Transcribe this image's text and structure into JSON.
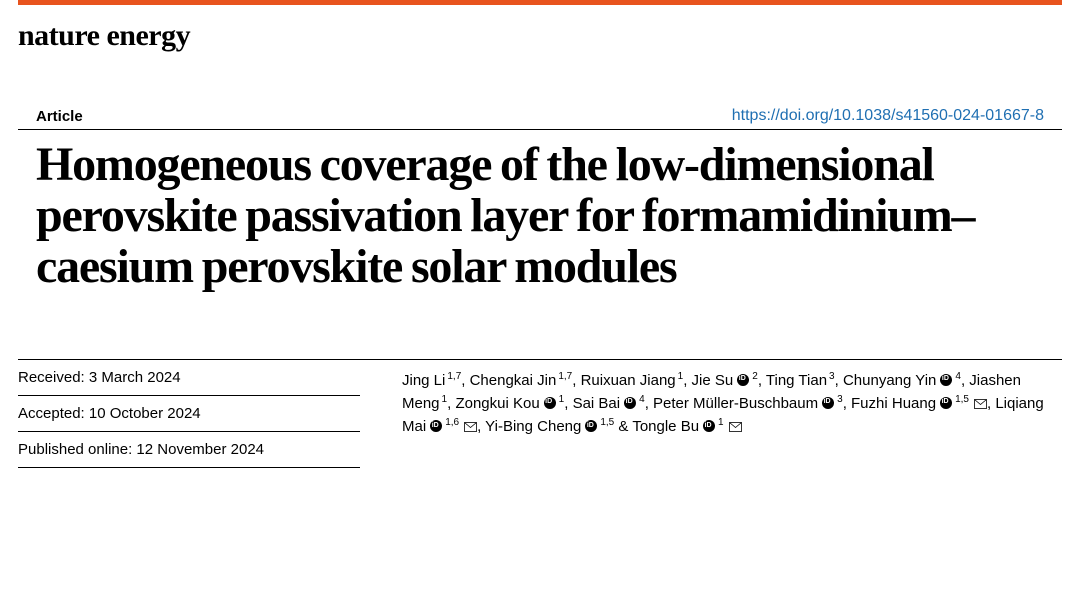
{
  "journal": "nature energy",
  "article_type": "Article",
  "doi": "https://doi.org/10.1038/s41560-024-01667-8",
  "title": "Homogeneous coverage of the low-dimensional perovskite passivation layer for formamidinium–caesium perovskite solar modules",
  "dates": {
    "received_label": "Received: 3 March 2024",
    "accepted_label": "Accepted: 10 October 2024",
    "published_label": "Published online: 12 November 2024"
  },
  "authors": [
    {
      "name": "Jing Li",
      "aff": "1,7"
    },
    {
      "name": "Chengkai Jin",
      "aff": "1,7"
    },
    {
      "name": "Ruixuan Jiang",
      "aff": "1"
    },
    {
      "name": "Jie Su",
      "orcid": true,
      "aff": "2"
    },
    {
      "name": "Ting Tian",
      "aff": "3"
    },
    {
      "name": "Chunyang Yin",
      "orcid": true,
      "aff": "4"
    },
    {
      "name": "Jiashen Meng",
      "aff": "1"
    },
    {
      "name": "Zongkui Kou",
      "orcid": true,
      "aff": "1"
    },
    {
      "name": "Sai Bai",
      "orcid": true,
      "aff": "4"
    },
    {
      "name": "Peter Müller-Buschbaum",
      "orcid": true,
      "aff": "3"
    },
    {
      "name": "Fuzhi Huang",
      "orcid": true,
      "aff": "1,5",
      "mail": true
    },
    {
      "name": "Liqiang Mai",
      "orcid": true,
      "aff": "1,6",
      "mail": true
    },
    {
      "name": "Yi-Bing Cheng",
      "orcid": true,
      "aff": "1,5"
    },
    {
      "name": "Tongle Bu",
      "orcid": true,
      "aff": "1",
      "mail": true
    }
  ],
  "colors": {
    "accent": "#e8541e",
    "link": "#1f6fb2",
    "text": "#000000",
    "bg": "#ffffff"
  }
}
